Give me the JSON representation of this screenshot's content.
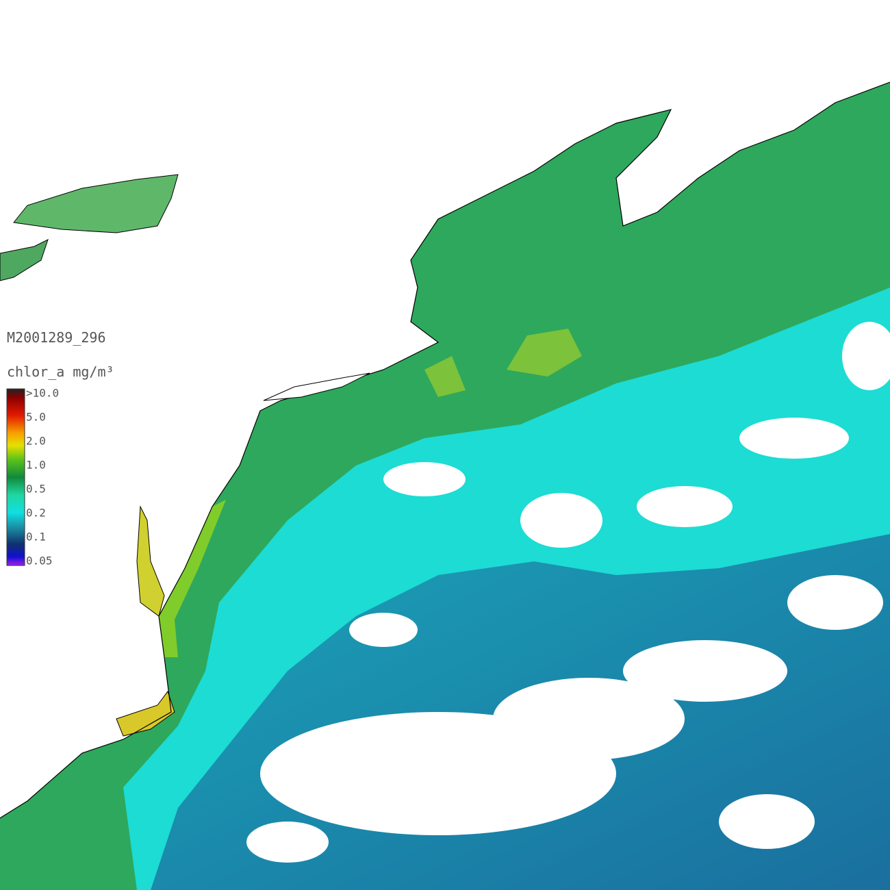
{
  "title": "M2001289_296",
  "units": "chlor_a mg/m³",
  "colorbar": {
    "labels": [
      ">10.0",
      "5.0",
      "2.0",
      "1.0",
      "0.5",
      "0.2",
      "0.1",
      "0.05"
    ]
  }
}
